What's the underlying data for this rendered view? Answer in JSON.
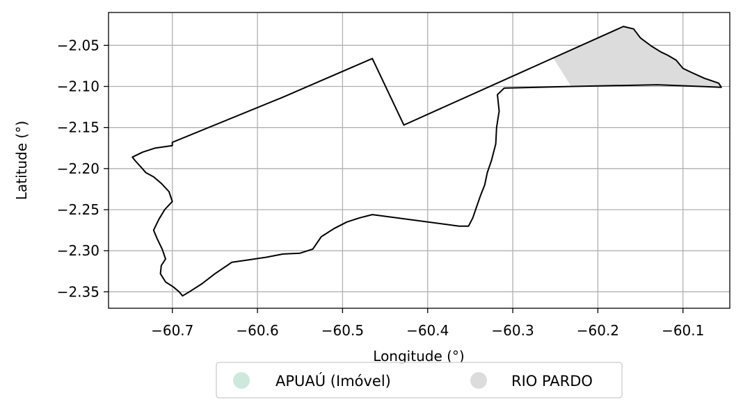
{
  "map": {
    "xlabel": "Longitude (°)",
    "ylabel": "Latitude (°)",
    "xlim": [
      -60.775,
      -60.045
    ],
    "ylim": [
      -2.37,
      -2.01
    ],
    "x_ticks": [
      -60.7,
      -60.6,
      -60.5,
      -60.4,
      -60.3,
      -60.2,
      -60.1
    ],
    "x_tick_labels": [
      "−60.7",
      "−60.6",
      "−60.5",
      "−60.4",
      "−60.3",
      "−60.2",
      "−60.1"
    ],
    "y_ticks": [
      -2.05,
      -2.1,
      -2.15,
      -2.2,
      -2.25,
      -2.3,
      -2.35
    ],
    "y_tick_labels": [
      "−2.05",
      "−2.10",
      "−2.15",
      "−2.20",
      "−2.25",
      "−2.30",
      "−2.35"
    ],
    "grid": true,
    "legend_position": "bottom-center",
    "legend": [
      {
        "label": "APUAÚ (Imóvel)",
        "color": "#cde9dc"
      },
      {
        "label": "RIO PARDO",
        "color": "#dcdcdc"
      }
    ],
    "outline_color": "#000000",
    "shaded_region_color": "#dcdcdc",
    "outline_lonlat": [
      [
        -60.7,
        -2.168
      ],
      [
        -60.57,
        -2.113
      ],
      [
        -60.465,
        -2.066
      ],
      [
        -60.428,
        -2.147
      ],
      [
        -60.17,
        -2.027
      ],
      [
        -60.158,
        -2.03
      ],
      [
        -60.15,
        -2.041
      ],
      [
        -60.137,
        -2.051
      ],
      [
        -60.126,
        -2.058
      ],
      [
        -60.118,
        -2.062
      ],
      [
        -60.108,
        -2.068
      ],
      [
        -60.1,
        -2.078
      ],
      [
        -60.09,
        -2.083
      ],
      [
        -60.075,
        -2.09
      ],
      [
        -60.058,
        -2.096
      ],
      [
        -60.055,
        -2.101
      ],
      [
        -60.13,
        -2.098
      ],
      [
        -60.23,
        -2.1
      ],
      [
        -60.31,
        -2.102
      ],
      [
        -60.318,
        -2.11
      ],
      [
        -60.316,
        -2.13
      ],
      [
        -60.319,
        -2.15
      ],
      [
        -60.32,
        -2.17
      ],
      [
        -60.325,
        -2.19
      ],
      [
        -60.33,
        -2.205
      ],
      [
        -60.333,
        -2.22
      ],
      [
        -60.338,
        -2.233
      ],
      [
        -60.342,
        -2.245
      ],
      [
        -60.347,
        -2.26
      ],
      [
        -60.352,
        -2.27
      ],
      [
        -60.363,
        -2.27
      ],
      [
        -60.465,
        -2.256
      ],
      [
        -60.48,
        -2.26
      ],
      [
        -60.495,
        -2.265
      ],
      [
        -60.51,
        -2.273
      ],
      [
        -60.525,
        -2.283
      ],
      [
        -60.535,
        -2.298
      ],
      [
        -60.55,
        -2.303
      ],
      [
        -60.57,
        -2.304
      ],
      [
        -60.59,
        -2.308
      ],
      [
        -60.61,
        -2.311
      ],
      [
        -60.63,
        -2.314
      ],
      [
        -60.65,
        -2.328
      ],
      [
        -60.665,
        -2.34
      ],
      [
        -60.68,
        -2.35
      ],
      [
        -60.688,
        -2.355
      ],
      [
        -60.692,
        -2.35
      ],
      [
        -60.699,
        -2.344
      ],
      [
        -60.708,
        -2.338
      ],
      [
        -60.714,
        -2.328
      ],
      [
        -60.713,
        -2.318
      ],
      [
        -60.708,
        -2.31
      ],
      [
        -60.712,
        -2.298
      ],
      [
        -60.718,
        -2.285
      ],
      [
        -60.722,
        -2.275
      ],
      [
        -60.716,
        -2.262
      ],
      [
        -60.709,
        -2.25
      ],
      [
        -60.7,
        -2.24
      ],
      [
        -60.704,
        -2.228
      ],
      [
        -60.713,
        -2.218
      ],
      [
        -60.722,
        -2.21
      ],
      [
        -60.731,
        -2.205
      ],
      [
        -60.737,
        -2.198
      ],
      [
        -60.744,
        -2.19
      ],
      [
        -60.747,
        -2.186
      ],
      [
        -60.735,
        -2.18
      ],
      [
        -60.72,
        -2.175
      ],
      [
        -60.7,
        -2.172
      ],
      [
        -60.7,
        -2.168
      ]
    ],
    "shaded_lonlat": [
      [
        -60.252,
        -2.066
      ],
      [
        -60.17,
        -2.027
      ],
      [
        -60.158,
        -2.03
      ],
      [
        -60.15,
        -2.041
      ],
      [
        -60.137,
        -2.051
      ],
      [
        -60.126,
        -2.058
      ],
      [
        -60.118,
        -2.062
      ],
      [
        -60.108,
        -2.068
      ],
      [
        -60.1,
        -2.078
      ],
      [
        -60.09,
        -2.083
      ],
      [
        -60.075,
        -2.09
      ],
      [
        -60.058,
        -2.096
      ],
      [
        -60.055,
        -2.101
      ],
      [
        -60.13,
        -2.098
      ],
      [
        -60.232,
        -2.099
      ]
    ]
  }
}
